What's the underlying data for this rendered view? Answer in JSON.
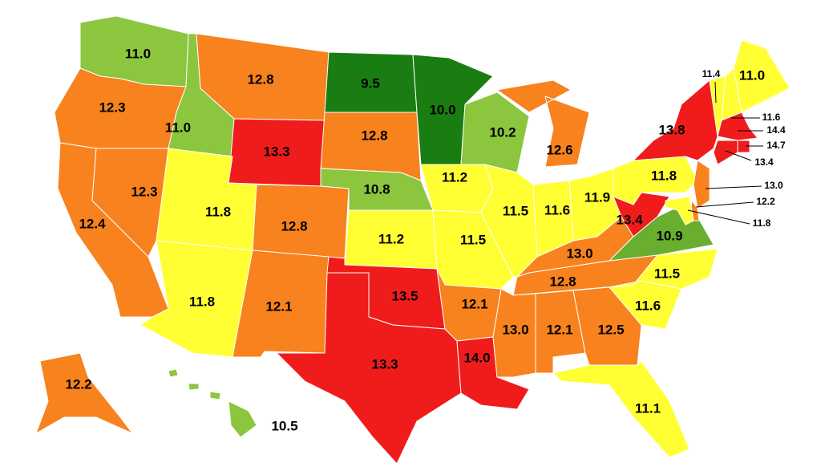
{
  "map": {
    "regions": [
      {
        "value": 11,
        "label": "11.0",
        "color": "#8cc63f"
      },
      {
        "value": 12.3,
        "label": "12.3",
        "color": "#f7821e"
      },
      {
        "value": 12.4,
        "label": "12.4",
        "color": "#f7821e"
      },
      {
        "value": 12.3,
        "label": "12.3",
        "color": "#f7821e"
      },
      {
        "value": 11,
        "label": "11.0",
        "color": "#8cc63f"
      },
      {
        "value": 12.8,
        "label": "12.8",
        "color": "#f7821e"
      },
      {
        "value": 13.3,
        "label": "13.3",
        "color": "#f01c1c"
      },
      {
        "value": 11.8,
        "label": "11.8",
        "color": "#ffff33"
      },
      {
        "value": 11.8,
        "label": "11.8",
        "color": "#ffff33"
      },
      {
        "value": 12.8,
        "label": "12.8",
        "color": "#f7821e"
      },
      {
        "value": 12.1,
        "label": "12.1",
        "color": "#f7821e"
      },
      {
        "value": 9.5,
        "label": "9.5",
        "color": "#1a7d12"
      },
      {
        "value": 12.8,
        "label": "12.8",
        "color": "#f7821e"
      },
      {
        "value": 10.8,
        "label": "10.8",
        "color": "#8cc63f"
      },
      {
        "value": 11.2,
        "label": "11.2",
        "color": "#ffff33"
      },
      {
        "value": 13.5,
        "label": "13.5",
        "color": "#f01c1c"
      },
      {
        "value": 13.3,
        "label": "13.3",
        "color": "#f01c1c"
      },
      {
        "value": 10,
        "label": "10.0",
        "color": "#1a7d12"
      },
      {
        "value": 11.2,
        "label": "11.2",
        "color": "#ffff33"
      },
      {
        "value": 11.5,
        "label": "11.5",
        "color": "#ffff33"
      },
      {
        "value": 12.1,
        "label": "12.1",
        "color": "#f7821e"
      },
      {
        "value": 14,
        "label": "14.0",
        "color": "#f01c1c"
      },
      {
        "value": 10.2,
        "label": "10.2",
        "color": "#8cc63f"
      },
      {
        "value": 11.5,
        "label": "11.5",
        "color": "#ffff33"
      },
      {
        "value": 12.6,
        "label": "12.6",
        "color": "#f7821e"
      },
      {
        "value": 11.6,
        "label": "11.6",
        "color": "#ffff33"
      },
      {
        "value": 11.9,
        "label": "11.9",
        "color": "#ffff33"
      },
      {
        "value": 13,
        "label": "13.0",
        "color": "#f7821e"
      },
      {
        "value": 12.8,
        "label": "12.8",
        "color": "#f7821e"
      },
      {
        "value": 13,
        "label": "13.0",
        "color": "#f7821e"
      },
      {
        "value": 12.1,
        "label": "12.1",
        "color": "#f7821e"
      },
      {
        "value": 12.5,
        "label": "12.5",
        "color": "#f7821e"
      },
      {
        "value": 11.1,
        "label": "11.1",
        "color": "#ffff33"
      },
      {
        "value": 11.6,
        "label": "11.6",
        "color": "#ffff33"
      },
      {
        "value": 11.5,
        "label": "11.5",
        "color": "#ffff33"
      },
      {
        "value": 10.9,
        "label": "10.9",
        "color": "#6aae2f"
      },
      {
        "value": 13.4,
        "label": "13.4",
        "color": "#f01c1c"
      },
      {
        "value": 11.8,
        "label": "11.8",
        "color": "#ffff33"
      },
      {
        "value": 13.8,
        "label": "13.8",
        "color": "#f01c1c"
      },
      {
        "value": 11,
        "label": "11.0",
        "color": "#ffff33"
      },
      {
        "value": 11.4,
        "label": "11.4",
        "color": "#ffff33"
      },
      {
        "value": 11.6,
        "label": "11.6",
        "color": "#ffff33"
      },
      {
        "value": 14.4,
        "label": "14.4",
        "color": "#f01c1c"
      },
      {
        "value": 14.7,
        "label": "14.7",
        "color": "#f01c1c"
      },
      {
        "value": 13.4,
        "label": "13.4",
        "color": "#f01c1c"
      },
      {
        "value": 13,
        "label": "13.0",
        "color": "#f7821e"
      },
      {
        "value": 12.2,
        "label": "12.2",
        "color": "#f7821e"
      },
      {
        "value": 11.8,
        "label": "11.8",
        "color": "#ffff33"
      },
      {
        "value": 12.2,
        "label": "12.2",
        "color": "#f7821e"
      },
      {
        "value": 10.5,
        "label": "10.5",
        "color": "#8cc63f"
      }
    ]
  }
}
